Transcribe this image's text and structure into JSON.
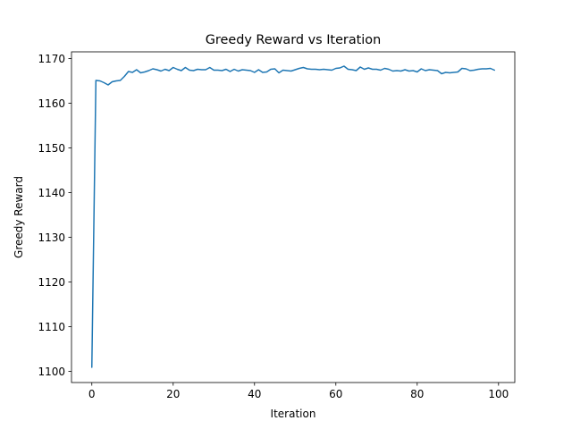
{
  "chart_data": {
    "type": "line",
    "title": "Greedy Reward vs Iteration",
    "xlabel": "Iteration",
    "ylabel": "Greedy Reward",
    "xlim": [
      -5,
      104
    ],
    "ylim": [
      1097.5,
      1171.5
    ],
    "xticks": [
      0,
      20,
      40,
      60,
      80,
      100
    ],
    "yticks": [
      1100,
      1110,
      1120,
      1130,
      1140,
      1150,
      1160,
      1170
    ],
    "grid": false,
    "legend": "none",
    "series": [
      {
        "color": "#1f77b4",
        "x": [
          0,
          1,
          2,
          3,
          4,
          5,
          6,
          7,
          8,
          9,
          10,
          11,
          12,
          13,
          14,
          15,
          16,
          17,
          18,
          19,
          20,
          21,
          22,
          23,
          24,
          25,
          26,
          27,
          28,
          29,
          30,
          31,
          32,
          33,
          34,
          35,
          36,
          37,
          38,
          39,
          40,
          41,
          42,
          43,
          44,
          45,
          46,
          47,
          48,
          49,
          50,
          51,
          52,
          53,
          54,
          55,
          56,
          57,
          58,
          59,
          60,
          61,
          62,
          63,
          64,
          65,
          66,
          67,
          68,
          69,
          70,
          71,
          72,
          73,
          74,
          75,
          76,
          77,
          78,
          79,
          80,
          81,
          82,
          83,
          84,
          85,
          86,
          87,
          88,
          89,
          90,
          91,
          92,
          93,
          94,
          95,
          96,
          97,
          98,
          99
        ],
        "values": [
          1100.9,
          1165.1,
          1165.0,
          1164.6,
          1164.1,
          1164.8,
          1165.0,
          1165.1,
          1166.0,
          1167.1,
          1166.9,
          1167.5,
          1166.8,
          1167.0,
          1167.3,
          1167.7,
          1167.5,
          1167.2,
          1167.6,
          1167.3,
          1168.0,
          1167.6,
          1167.3,
          1168.0,
          1167.4,
          1167.3,
          1167.6,
          1167.5,
          1167.5,
          1168.0,
          1167.4,
          1167.4,
          1167.3,
          1167.6,
          1167.1,
          1167.6,
          1167.2,
          1167.5,
          1167.4,
          1167.3,
          1166.9,
          1167.5,
          1166.9,
          1167.0,
          1167.6,
          1167.7,
          1166.8,
          1167.4,
          1167.3,
          1167.2,
          1167.5,
          1167.8,
          1168.0,
          1167.7,
          1167.6,
          1167.6,
          1167.5,
          1167.6,
          1167.5,
          1167.4,
          1167.8,
          1167.9,
          1168.3,
          1167.6,
          1167.5,
          1167.3,
          1168.1,
          1167.6,
          1167.9,
          1167.6,
          1167.6,
          1167.4,
          1167.8,
          1167.6,
          1167.2,
          1167.3,
          1167.2,
          1167.5,
          1167.2,
          1167.3,
          1167.0,
          1167.7,
          1167.3,
          1167.5,
          1167.4,
          1167.3,
          1166.6,
          1166.9,
          1166.8,
          1166.9,
          1167.0,
          1167.8,
          1167.7,
          1167.3,
          1167.4,
          1167.6,
          1167.7,
          1167.7,
          1167.8,
          1167.4
        ]
      }
    ]
  }
}
